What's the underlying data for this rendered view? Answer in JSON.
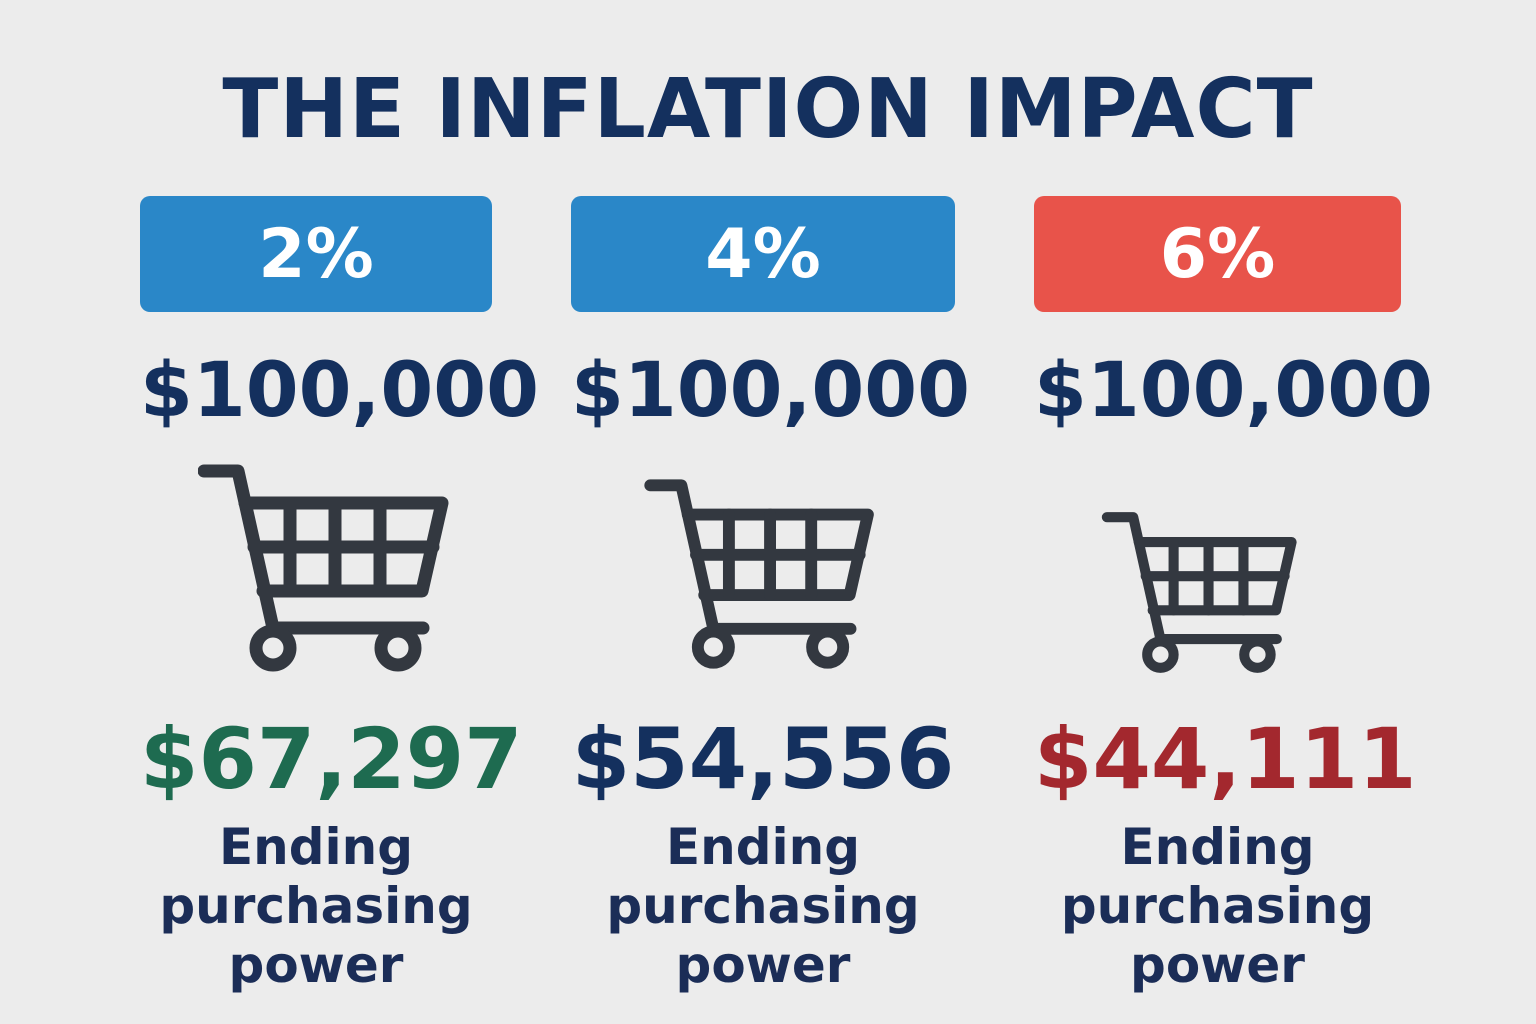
{
  "title": "THE INFLATION IMPACT",
  "columns": [
    {
      "rate": "2%",
      "start": "$100,000",
      "end": "$67,297",
      "label": "Ending purchasing power"
    },
    {
      "rate": "4%",
      "start": "$100,000",
      "end": "$54,556",
      "label": "Ending purchasing power"
    },
    {
      "rate": "6%",
      "start": "$100,000",
      "end": "$44,111",
      "label": "Ending purchasing power"
    }
  ]
}
